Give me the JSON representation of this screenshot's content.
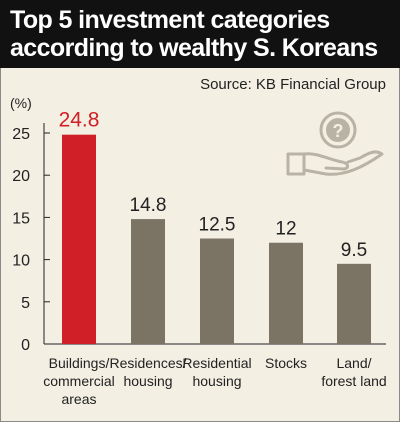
{
  "header": {
    "title_line1": "Top 5 investment categories",
    "title_line2": "according to wealthy S. Koreans"
  },
  "source": "Source: KB Financial Group",
  "icons": {
    "decoration": "hand-holding-question-coin-icon"
  },
  "colors": {
    "highlight": "#d01f26",
    "bar": "#7b7465",
    "background": "#f3efe3",
    "header": "#111111"
  },
  "chart_data": {
    "type": "bar",
    "categories": [
      [
        "Buildings/",
        "commercial",
        "areas"
      ],
      [
        "Residences/",
        "housing"
      ],
      [
        "Residential",
        "housing"
      ],
      [
        "Stocks"
      ],
      [
        "Land/",
        "forest land"
      ]
    ],
    "values": [
      24.8,
      14.8,
      12.5,
      12,
      9.5
    ],
    "value_labels": [
      "24.8",
      "14.8",
      "12.5",
      "12",
      "9.5"
    ],
    "ylabel": "(%)",
    "ylim": [
      0,
      25
    ],
    "yticks": [
      0,
      5,
      10,
      15,
      20,
      25
    ],
    "highlight_index": 0,
    "grid": false,
    "legend": "none"
  }
}
